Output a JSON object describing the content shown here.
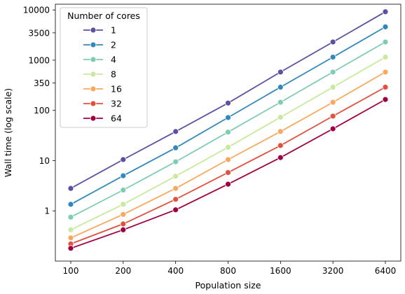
{
  "chart_data": {
    "type": "line",
    "title": "",
    "xlabel": "Population size",
    "ylabel": "Wall time (log scale)",
    "x_scale": "log2",
    "y_scale": "log10",
    "x": [
      100,
      200,
      400,
      800,
      1600,
      3200,
      6400
    ],
    "x_tick_labels": [
      "100",
      "200",
      "400",
      "800",
      "1600",
      "3200",
      "6400"
    ],
    "y_ticks": [
      1,
      10,
      100,
      350,
      1000,
      3500,
      10000
    ],
    "y_tick_labels": [
      "1",
      "10",
      "100",
      "350",
      "1000",
      "3500",
      "10000"
    ],
    "ylim": [
      0.1,
      13000
    ],
    "grid": false,
    "legend": {
      "title": "Number of cores",
      "placement": "top-left"
    },
    "series": [
      {
        "name": "1",
        "color": "#5e4fa2",
        "values": [
          2.8,
          10.5,
          38,
          140,
          580,
          2300,
          9200
        ]
      },
      {
        "name": "2",
        "color": "#3288bd",
        "values": [
          1.35,
          5.0,
          18,
          72,
          290,
          1150,
          4600
        ]
      },
      {
        "name": "4",
        "color": "#7fcdae",
        "values": [
          0.75,
          2.6,
          9.5,
          37,
          145,
          580,
          2300
        ]
      },
      {
        "name": "8",
        "color": "#c9e99c",
        "values": [
          0.42,
          1.35,
          4.9,
          18.5,
          73,
          290,
          1150
        ]
      },
      {
        "name": "16",
        "color": "#f9a85e",
        "values": [
          0.29,
          0.85,
          2.8,
          10.5,
          38,
          145,
          580
        ]
      },
      {
        "name": "32",
        "color": "#e0513f",
        "values": [
          0.22,
          0.55,
          1.7,
          5.8,
          20,
          77,
          290
        ]
      },
      {
        "name": "64",
        "color": "#9e0142",
        "values": [
          0.18,
          0.42,
          1.05,
          3.4,
          11.5,
          43,
          165
        ]
      }
    ]
  }
}
